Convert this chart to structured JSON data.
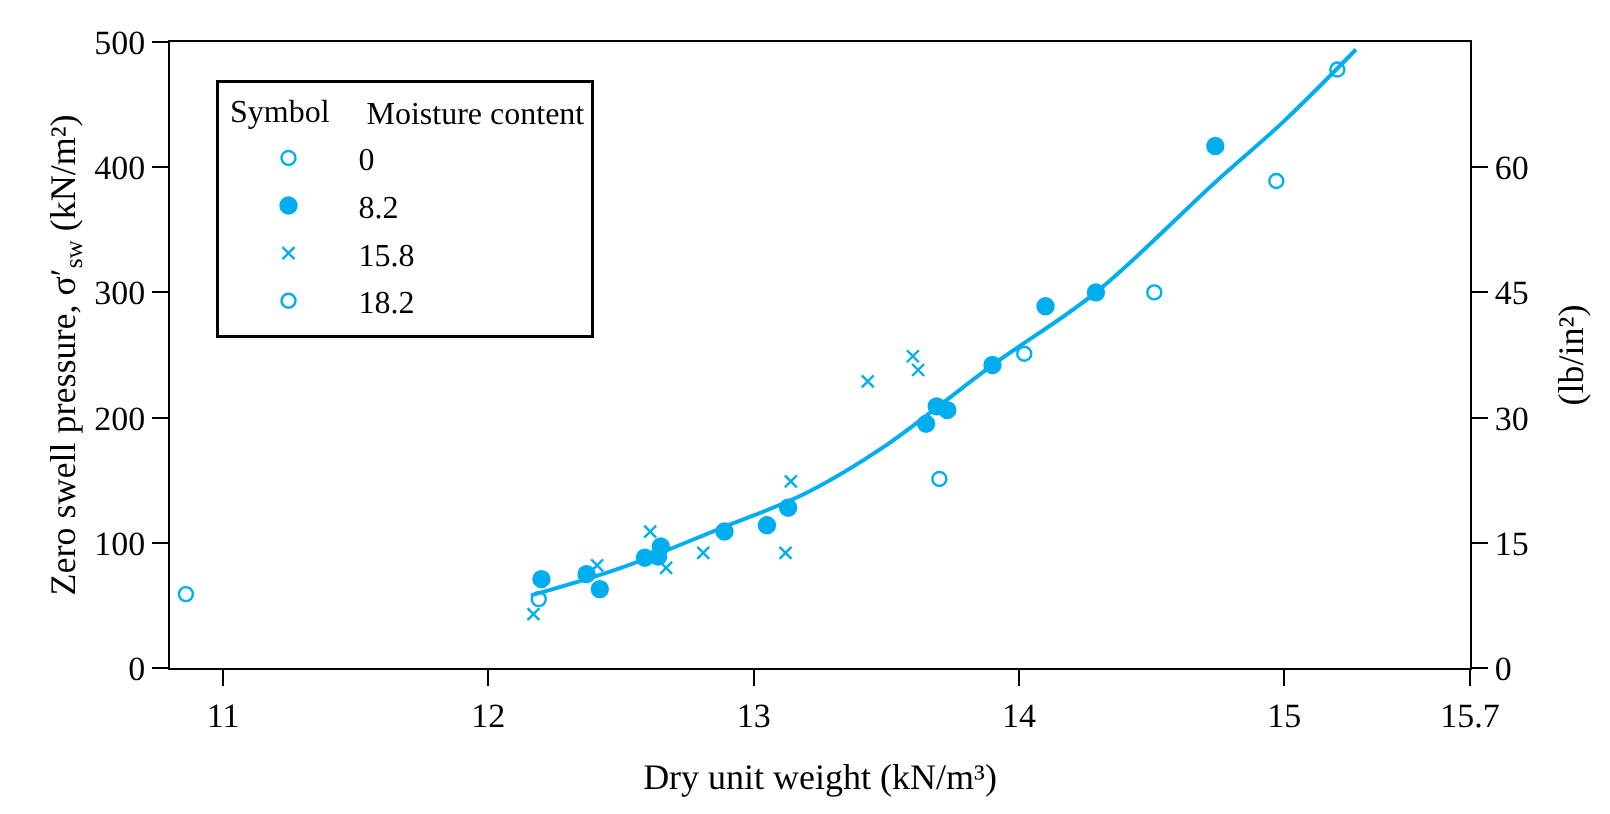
{
  "chart_data": {
    "type": "scatter",
    "xlabel": "Dry unit weight (kN/m³)",
    "ylabel": "Zero swell pressure, σ′$_{sw}$ (kN/m²)",
    "y2label": "(lb/in²)",
    "legend_title": "Moisture content",
    "annotations": [
      "Symbol"
    ],
    "xlim": [
      10.8,
      15.7
    ],
    "xticks": [
      11,
      12,
      13,
      14,
      15,
      15.7
    ],
    "ylim": [
      0,
      500
    ],
    "yticks": [
      0,
      100,
      200,
      300,
      400,
      500
    ],
    "y2lim": [
      0,
      75
    ],
    "y2ticks": [
      0,
      15,
      30,
      45,
      60
    ],
    "legend": "top left",
    "series": [
      {
        "name": "0",
        "color": "#00aeef",
        "marker": "circle",
        "x": [
          10.86,
          13.7,
          14.02,
          14.51,
          14.97,
          15.2
        ],
        "values": [
          59,
          151,
          251,
          300,
          389,
          478
        ]
      },
      {
        "name": "8.2",
        "color": "#00aeef",
        "marker": "circle",
        "x": [
          12.2,
          12.37,
          12.42,
          12.59,
          12.64,
          12.65,
          12.89,
          13.05,
          13.13,
          13.65,
          13.69,
          13.73,
          13.9,
          14.1,
          14.29,
          14.74
        ],
        "values": [
          71,
          75,
          63,
          88,
          89,
          97,
          109,
          114,
          128,
          195,
          209,
          206,
          242,
          289,
          300,
          417
        ]
      },
      {
        "name": "15.8",
        "color": "#00aeef",
        "marker": "cross",
        "x": [
          12.17,
          12.41,
          12.61,
          12.67,
          12.81,
          13.12,
          13.14,
          13.43,
          13.6,
          13.62
        ],
        "values": [
          43,
          82,
          109,
          80,
          92,
          92,
          149,
          229,
          249,
          238
        ]
      },
      {
        "name": "18.2",
        "color": "#00aeef",
        "marker": "circle",
        "x": [
          12.19
        ],
        "values": [
          55
        ]
      },
      {
        "type": "line",
        "color": "#00aeef",
        "x": [
          12.16,
          12.5,
          12.88,
          13.2,
          13.5,
          13.9,
          14.29,
          14.74,
          15.0,
          15.27
        ],
        "values": [
          58,
          80,
          112,
          140,
          178,
          242,
          300,
          388,
          437,
          494
        ]
      }
    ]
  }
}
